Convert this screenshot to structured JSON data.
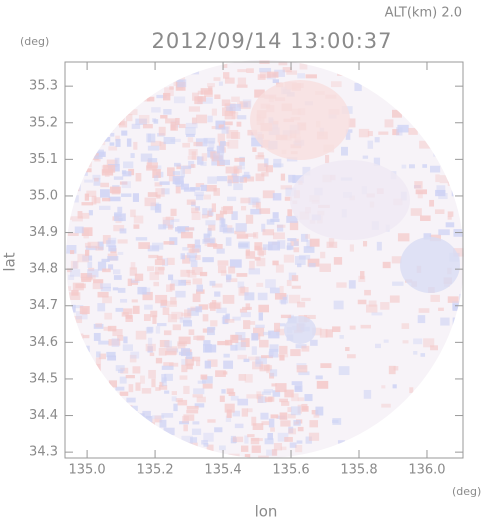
{
  "chart_data": {
    "type": "radar-field",
    "title": "2012/09/14 13:00:37",
    "subtitle": "ALT(km) 2.0",
    "x_label": "lon",
    "y_label": "lat",
    "x_unit": "(deg)",
    "y_unit": "(deg)",
    "xlim": [
      134.935,
      136.106
    ],
    "ylim": [
      34.284,
      35.366
    ],
    "xticks": [
      {
        "value": 135.0,
        "label": "135.0"
      },
      135.2,
      135.4,
      135.6,
      135.8,
      {
        "value": 136.0,
        "label": "136.0"
      }
    ],
    "yticks": [
      34.3,
      34.4,
      34.5,
      34.6,
      34.7,
      34.8,
      34.9,
      {
        "value": 35.0,
        "label": "35.0"
      },
      35.1,
      35.2,
      35.3
    ]
  }
}
